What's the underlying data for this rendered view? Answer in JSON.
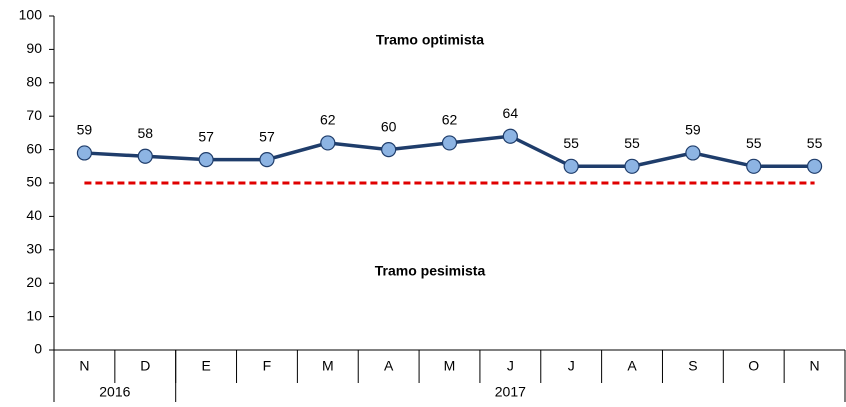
{
  "chart_data": {
    "type": "line",
    "categories": [
      "N",
      "D",
      "E",
      "F",
      "M",
      "A",
      "M",
      "J",
      "J",
      "A",
      "S",
      "O",
      "N"
    ],
    "groups": [
      {
        "label": "2016",
        "span": 2
      },
      {
        "label": "2017",
        "span": 11
      }
    ],
    "series": [
      {
        "color": "#1f3d6b",
        "marker_color": "#8db4e3",
        "values": [
          59,
          58,
          57,
          57,
          62,
          60,
          62,
          64,
          55,
          55,
          59,
          55,
          55
        ]
      }
    ],
    "reference_line": {
      "value": 50,
      "color": "#e00000"
    },
    "annotations": [
      "Tramo optimista",
      "Tramo pesimista"
    ],
    "ylim": [
      0,
      100
    ],
    "yticks": [
      0,
      10,
      20,
      30,
      40,
      50,
      60,
      70,
      80,
      90,
      100
    ]
  }
}
